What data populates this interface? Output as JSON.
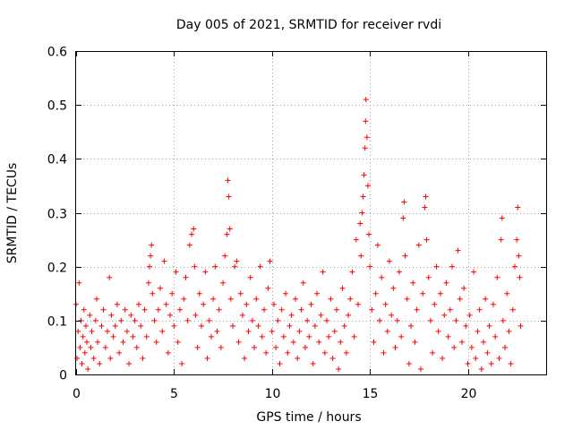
{
  "chart_data": {
    "type": "scatter",
    "title": "Day 005 of 2021, SRMTID for receiver rvdi",
    "xlabel": "GPS time / hours",
    "ylabel": "SRMTID / TECUs",
    "xlim": [
      0,
      24
    ],
    "ylim": [
      0,
      0.6
    ],
    "xticks": [
      0,
      5,
      10,
      15,
      20
    ],
    "xtick_labels": [
      "0",
      "5",
      "10",
      "15",
      "20"
    ],
    "yticks": [
      0,
      0.1,
      0.2,
      0.3,
      0.4,
      0.5,
      0.6
    ],
    "ytick_labels": [
      "0",
      "0.1",
      "0.2",
      "0.3",
      "0.4",
      "0.5",
      "0.6"
    ],
    "grid": true,
    "marker": "+",
    "color": "#ff0000",
    "series": [
      {
        "name": "SRMTID",
        "points": [
          [
            0.0,
            0.13
          ],
          [
            0.05,
            0.03
          ],
          [
            0.1,
            0.08
          ],
          [
            0.15,
            0.17
          ],
          [
            0.2,
            0.05
          ],
          [
            0.25,
            0.1
          ],
          [
            0.3,
            0.02
          ],
          [
            0.35,
            0.07
          ],
          [
            0.4,
            0.12
          ],
          [
            0.45,
            0.04
          ],
          [
            0.5,
            0.09
          ],
          [
            0.55,
            0.06
          ],
          [
            0.6,
            0.01
          ],
          [
            0.7,
            0.11
          ],
          [
            0.75,
            0.05
          ],
          [
            0.8,
            0.08
          ],
          [
            0.9,
            0.03
          ],
          [
            1.0,
            0.1
          ],
          [
            1.05,
            0.14
          ],
          [
            1.1,
            0.06
          ],
          [
            1.2,
            0.02
          ],
          [
            1.3,
            0.09
          ],
          [
            1.4,
            0.12
          ],
          [
            1.5,
            0.05
          ],
          [
            1.6,
            0.08
          ],
          [
            1.7,
            0.18
          ],
          [
            1.75,
            0.03
          ],
          [
            1.8,
            0.11
          ],
          [
            1.9,
            0.07
          ],
          [
            2.0,
            0.09
          ],
          [
            2.1,
            0.13
          ],
          [
            2.2,
            0.04
          ],
          [
            2.3,
            0.1
          ],
          [
            2.4,
            0.06
          ],
          [
            2.5,
            0.12
          ],
          [
            2.6,
            0.08
          ],
          [
            2.7,
            0.02
          ],
          [
            2.8,
            0.11
          ],
          [
            2.9,
            0.07
          ],
          [
            3.0,
            0.1
          ],
          [
            3.1,
            0.05
          ],
          [
            3.2,
            0.13
          ],
          [
            3.3,
            0.09
          ],
          [
            3.4,
            0.03
          ],
          [
            3.5,
            0.12
          ],
          [
            3.6,
            0.07
          ],
          [
            3.7,
            0.17
          ],
          [
            3.75,
            0.2
          ],
          [
            3.8,
            0.22
          ],
          [
            3.85,
            0.24
          ],
          [
            3.9,
            0.15
          ],
          [
            4.0,
            0.1
          ],
          [
            4.1,
            0.06
          ],
          [
            4.2,
            0.12
          ],
          [
            4.3,
            0.16
          ],
          [
            4.4,
            0.08
          ],
          [
            4.5,
            0.21
          ],
          [
            4.6,
            0.13
          ],
          [
            4.7,
            0.04
          ],
          [
            4.8,
            0.11
          ],
          [
            4.9,
            0.15
          ],
          [
            5.0,
            0.09
          ],
          [
            5.1,
            0.19
          ],
          [
            5.2,
            0.06
          ],
          [
            5.3,
            0.12
          ],
          [
            5.4,
            0.02
          ],
          [
            5.5,
            0.14
          ],
          [
            5.6,
            0.18
          ],
          [
            5.7,
            0.1
          ],
          [
            5.8,
            0.24
          ],
          [
            5.9,
            0.26
          ],
          [
            6.0,
            0.27
          ],
          [
            6.05,
            0.2
          ],
          [
            6.1,
            0.11
          ],
          [
            6.2,
            0.05
          ],
          [
            6.3,
            0.15
          ],
          [
            6.4,
            0.09
          ],
          [
            6.5,
            0.13
          ],
          [
            6.6,
            0.19
          ],
          [
            6.7,
            0.03
          ],
          [
            6.8,
            0.1
          ],
          [
            6.9,
            0.07
          ],
          [
            7.0,
            0.14
          ],
          [
            7.1,
            0.2
          ],
          [
            7.2,
            0.08
          ],
          [
            7.3,
            0.12
          ],
          [
            7.4,
            0.05
          ],
          [
            7.5,
            0.17
          ],
          [
            7.6,
            0.22
          ],
          [
            7.7,
            0.26
          ],
          [
            7.75,
            0.36
          ],
          [
            7.8,
            0.33
          ],
          [
            7.85,
            0.27
          ],
          [
            7.9,
            0.14
          ],
          [
            8.0,
            0.09
          ],
          [
            8.1,
            0.2
          ],
          [
            8.2,
            0.21
          ],
          [
            8.3,
            0.06
          ],
          [
            8.4,
            0.15
          ],
          [
            8.5,
            0.11
          ],
          [
            8.6,
            0.03
          ],
          [
            8.7,
            0.13
          ],
          [
            8.8,
            0.08
          ],
          [
            8.9,
            0.18
          ],
          [
            9.0,
            0.1
          ],
          [
            9.1,
            0.05
          ],
          [
            9.2,
            0.14
          ],
          [
            9.3,
            0.09
          ],
          [
            9.4,
            0.2
          ],
          [
            9.5,
            0.07
          ],
          [
            9.6,
            0.12
          ],
          [
            9.7,
            0.04
          ],
          [
            9.8,
            0.16
          ],
          [
            9.9,
            0.21
          ],
          [
            10.0,
            0.08
          ],
          [
            10.1,
            0.13
          ],
          [
            10.2,
            0.05
          ],
          [
            10.3,
            0.1
          ],
          [
            10.4,
            0.02
          ],
          [
            10.5,
            0.12
          ],
          [
            10.6,
            0.07
          ],
          [
            10.7,
            0.15
          ],
          [
            10.8,
            0.04
          ],
          [
            10.9,
            0.09
          ],
          [
            11.0,
            0.11
          ],
          [
            11.1,
            0.06
          ],
          [
            11.2,
            0.14
          ],
          [
            11.3,
            0.03
          ],
          [
            11.4,
            0.08
          ],
          [
            11.5,
            0.12
          ],
          [
            11.6,
            0.17
          ],
          [
            11.7,
            0.05
          ],
          [
            11.8,
            0.1
          ],
          [
            11.9,
            0.07
          ],
          [
            12.0,
            0.13
          ],
          [
            12.1,
            0.02
          ],
          [
            12.2,
            0.09
          ],
          [
            12.3,
            0.15
          ],
          [
            12.4,
            0.06
          ],
          [
            12.5,
            0.11
          ],
          [
            12.6,
            0.19
          ],
          [
            12.7,
            0.04
          ],
          [
            12.8,
            0.1
          ],
          [
            12.9,
            0.07
          ],
          [
            13.0,
            0.14
          ],
          [
            13.1,
            0.03
          ],
          [
            13.2,
            0.08
          ],
          [
            13.3,
            0.12
          ],
          [
            13.4,
            0.01
          ],
          [
            13.5,
            0.06
          ],
          [
            13.6,
            0.16
          ],
          [
            13.7,
            0.09
          ],
          [
            13.8,
            0.04
          ],
          [
            13.9,
            0.11
          ],
          [
            14.0,
            0.14
          ],
          [
            14.1,
            0.19
          ],
          [
            14.2,
            0.07
          ],
          [
            14.3,
            0.25
          ],
          [
            14.4,
            0.13
          ],
          [
            14.5,
            0.28
          ],
          [
            14.55,
            0.22
          ],
          [
            14.6,
            0.3
          ],
          [
            14.65,
            0.33
          ],
          [
            14.7,
            0.37
          ],
          [
            14.75,
            0.42
          ],
          [
            14.78,
            0.47
          ],
          [
            14.8,
            0.51
          ],
          [
            14.85,
            0.44
          ],
          [
            14.9,
            0.35
          ],
          [
            14.95,
            0.26
          ],
          [
            15.0,
            0.2
          ],
          [
            15.1,
            0.12
          ],
          [
            15.2,
            0.06
          ],
          [
            15.3,
            0.15
          ],
          [
            15.4,
            0.24
          ],
          [
            15.5,
            0.1
          ],
          [
            15.6,
            0.18
          ],
          [
            15.7,
            0.04
          ],
          [
            15.8,
            0.13
          ],
          [
            15.9,
            0.08
          ],
          [
            16.0,
            0.21
          ],
          [
            16.1,
            0.11
          ],
          [
            16.2,
            0.16
          ],
          [
            16.3,
            0.05
          ],
          [
            16.4,
            0.1
          ],
          [
            16.5,
            0.19
          ],
          [
            16.6,
            0.07
          ],
          [
            16.7,
            0.29
          ],
          [
            16.75,
            0.32
          ],
          [
            16.8,
            0.22
          ],
          [
            16.9,
            0.14
          ],
          [
            17.0,
            0.02
          ],
          [
            17.1,
            0.09
          ],
          [
            17.2,
            0.17
          ],
          [
            17.3,
            0.06
          ],
          [
            17.4,
            0.12
          ],
          [
            17.5,
            0.24
          ],
          [
            17.6,
            0.01
          ],
          [
            17.7,
            0.15
          ],
          [
            17.8,
            0.31
          ],
          [
            17.85,
            0.33
          ],
          [
            17.9,
            0.25
          ],
          [
            18.0,
            0.18
          ],
          [
            18.1,
            0.1
          ],
          [
            18.2,
            0.04
          ],
          [
            18.3,
            0.13
          ],
          [
            18.4,
            0.2
          ],
          [
            18.5,
            0.08
          ],
          [
            18.6,
            0.15
          ],
          [
            18.7,
            0.03
          ],
          [
            18.8,
            0.11
          ],
          [
            18.9,
            0.17
          ],
          [
            19.0,
            0.07
          ],
          [
            19.1,
            0.12
          ],
          [
            19.2,
            0.2
          ],
          [
            19.3,
            0.05
          ],
          [
            19.4,
            0.1
          ],
          [
            19.5,
            0.23
          ],
          [
            19.6,
            0.14
          ],
          [
            19.7,
            0.06
          ],
          [
            19.8,
            0.16
          ],
          [
            19.9,
            0.09
          ],
          [
            20.0,
            0.02
          ],
          [
            20.1,
            0.11
          ],
          [
            20.2,
            0.05
          ],
          [
            20.3,
            0.19
          ],
          [
            20.4,
            0.03
          ],
          [
            20.5,
            0.08
          ],
          [
            20.6,
            0.12
          ],
          [
            20.7,
            0.01
          ],
          [
            20.8,
            0.06
          ],
          [
            20.9,
            0.14
          ],
          [
            21.0,
            0.04
          ],
          [
            21.1,
            0.09
          ],
          [
            21.2,
            0.02
          ],
          [
            21.3,
            0.13
          ],
          [
            21.4,
            0.07
          ],
          [
            21.5,
            0.18
          ],
          [
            21.6,
            0.03
          ],
          [
            21.7,
            0.25
          ],
          [
            21.75,
            0.29
          ],
          [
            21.8,
            0.1
          ],
          [
            21.9,
            0.05
          ],
          [
            22.0,
            0.15
          ],
          [
            22.1,
            0.08
          ],
          [
            22.2,
            0.02
          ],
          [
            22.3,
            0.12
          ],
          [
            22.4,
            0.2
          ],
          [
            22.5,
            0.25
          ],
          [
            22.55,
            0.31
          ],
          [
            22.6,
            0.22
          ],
          [
            22.65,
            0.18
          ],
          [
            22.7,
            0.09
          ]
        ]
      }
    ]
  }
}
